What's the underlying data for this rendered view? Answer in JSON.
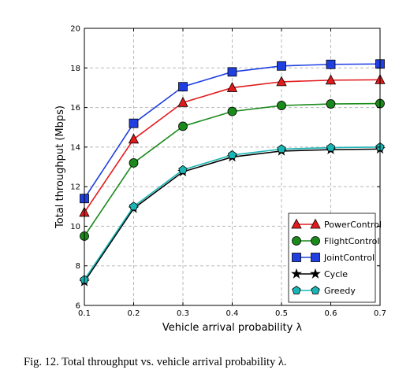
{
  "chart_data": {
    "type": "line",
    "xlabel": "Vehicle arrival probability λ",
    "ylabel": "Total throughput (Mbps)",
    "x": [
      0.1,
      0.2,
      0.3,
      0.4,
      0.5,
      0.6,
      0.7
    ],
    "x_tick_labels": [
      "0.1",
      "0.2",
      "0.3",
      "0.4",
      "0.5",
      "0.6",
      "0.7"
    ],
    "y_tick_labels": [
      "6",
      "8",
      "10",
      "12",
      "14",
      "16",
      "18",
      "20"
    ],
    "xlim": [
      0.1,
      0.7
    ],
    "ylim": [
      6,
      20
    ],
    "grid": true,
    "legend_position": "lower-right",
    "series": [
      {
        "name": "PowerControl",
        "color": "#e31a1c",
        "marker": "triangle",
        "values": [
          10.7,
          14.4,
          16.25,
          17.0,
          17.3,
          17.38,
          17.4
        ]
      },
      {
        "name": "FlightControl",
        "color": "#1a8a1a",
        "marker": "circle",
        "values": [
          9.5,
          13.2,
          15.05,
          15.8,
          16.1,
          16.18,
          16.2
        ]
      },
      {
        "name": "JointControl",
        "color": "#1f3fe0",
        "marker": "square",
        "values": [
          11.4,
          15.2,
          17.05,
          17.8,
          18.1,
          18.18,
          18.2
        ]
      },
      {
        "name": "Cycle",
        "color": "#000000",
        "marker": "star",
        "values": [
          7.2,
          10.9,
          12.75,
          13.5,
          13.8,
          13.87,
          13.9
        ]
      },
      {
        "name": "Greedy",
        "color": "#1ab5b5",
        "marker": "pentagon",
        "values": [
          7.3,
          11.0,
          12.85,
          13.6,
          13.9,
          13.97,
          14.0
        ]
      }
    ]
  },
  "caption": "Fig. 12.  Total throughput vs. vehicle arrival probability λ."
}
